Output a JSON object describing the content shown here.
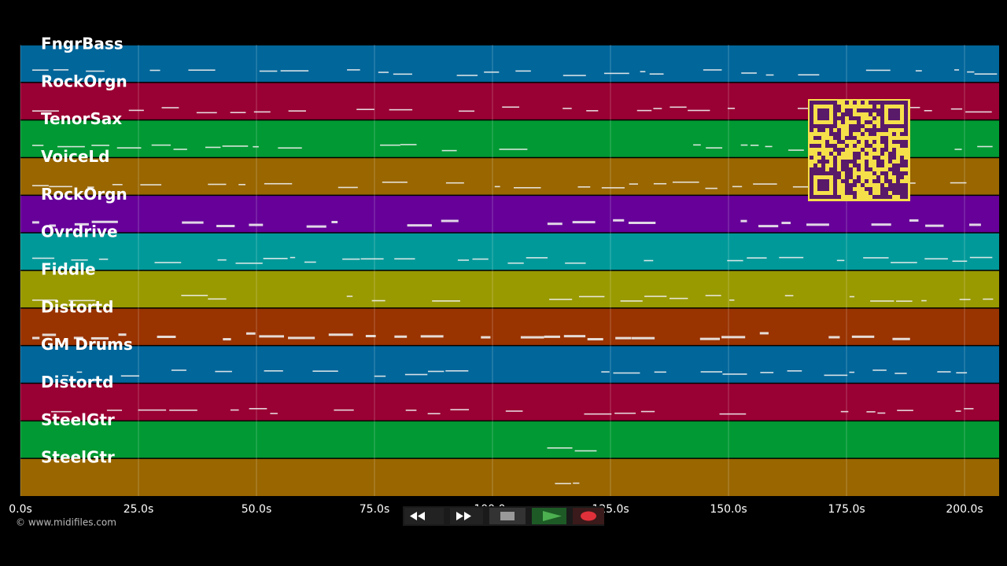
{
  "tracks": [
    {
      "name": "FngrBass",
      "color": "#01669a"
    },
    {
      "name": "RockOrgn",
      "color": "#990033"
    },
    {
      "name": "TenorSax",
      "color": "#009933"
    },
    {
      "name": "VoiceLd",
      "color": "#996600"
    },
    {
      "name": "RockOrgn",
      "color": "#660099"
    },
    {
      "name": "Ovrdrive",
      "color": "#009999"
    },
    {
      "name": "Fiddle",
      "color": "#999900"
    },
    {
      "name": "Distortd",
      "color": "#993300"
    },
    {
      "name": "GM Drums",
      "color": "#01669a"
    },
    {
      "name": "Distortd",
      "color": "#990033"
    },
    {
      "name": "SteelGtr",
      "color": "#009933"
    },
    {
      "name": "SteelGtr",
      "color": "#996600"
    }
  ],
  "time_axis": {
    "ticks": [
      "0.0s",
      "25.0s",
      "50.0s",
      "75.0s",
      "100.0s",
      "125.0s",
      "150.0s",
      "175.0s",
      "200.0s"
    ]
  },
  "footer": {
    "copyright": "© www.midifiles.com"
  }
}
